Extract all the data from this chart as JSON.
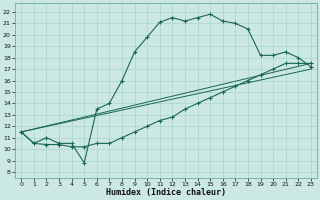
{
  "xlabel": "Humidex (Indice chaleur)",
  "xlim": [
    -0.5,
    23.5
  ],
  "ylim": [
    7.5,
    22.8
  ],
  "xticks": [
    0,
    1,
    2,
    3,
    4,
    5,
    6,
    7,
    8,
    9,
    10,
    11,
    12,
    13,
    14,
    15,
    16,
    17,
    18,
    19,
    20,
    21,
    22,
    23
  ],
  "yticks": [
    8,
    9,
    10,
    11,
    12,
    13,
    14,
    15,
    16,
    17,
    18,
    19,
    20,
    21,
    22
  ],
  "bg_color": "#cce8e4",
  "grid_color": "#aad4ce",
  "line_color": "#1a6655",
  "curve_main_x": [
    0,
    1,
    2,
    3,
    4,
    5,
    6,
    7,
    8,
    9,
    10,
    11,
    12,
    13,
    14,
    15,
    16,
    17,
    18,
    19,
    20,
    21,
    22,
    23
  ],
  "curve_main_y": [
    11.5,
    10.5,
    11.0,
    10.5,
    10.5,
    8.8,
    13.5,
    14.0,
    16.0,
    18.5,
    19.8,
    21.1,
    21.5,
    21.2,
    21.5,
    21.8,
    21.2,
    21.0,
    20.5,
    18.2,
    18.2,
    18.5,
    18.0,
    17.2
  ],
  "curve_lower_x": [
    0,
    1,
    2,
    3,
    4,
    5,
    6,
    7,
    8,
    9,
    10,
    11,
    12,
    13,
    14,
    15,
    16,
    17,
    18,
    19,
    20,
    21,
    22,
    23
  ],
  "curve_lower_y": [
    11.5,
    10.5,
    10.4,
    10.4,
    10.2,
    10.2,
    10.5,
    10.5,
    11.0,
    11.5,
    12.0,
    12.5,
    12.8,
    13.5,
    14.0,
    14.5,
    15.0,
    15.5,
    16.0,
    16.5,
    17.0,
    17.5,
    17.5,
    17.5
  ],
  "line1_x": [
    0,
    23
  ],
  "line1_y": [
    11.5,
    17.0
  ],
  "line2_x": [
    0,
    23
  ],
  "line2_y": [
    11.5,
    17.5
  ]
}
